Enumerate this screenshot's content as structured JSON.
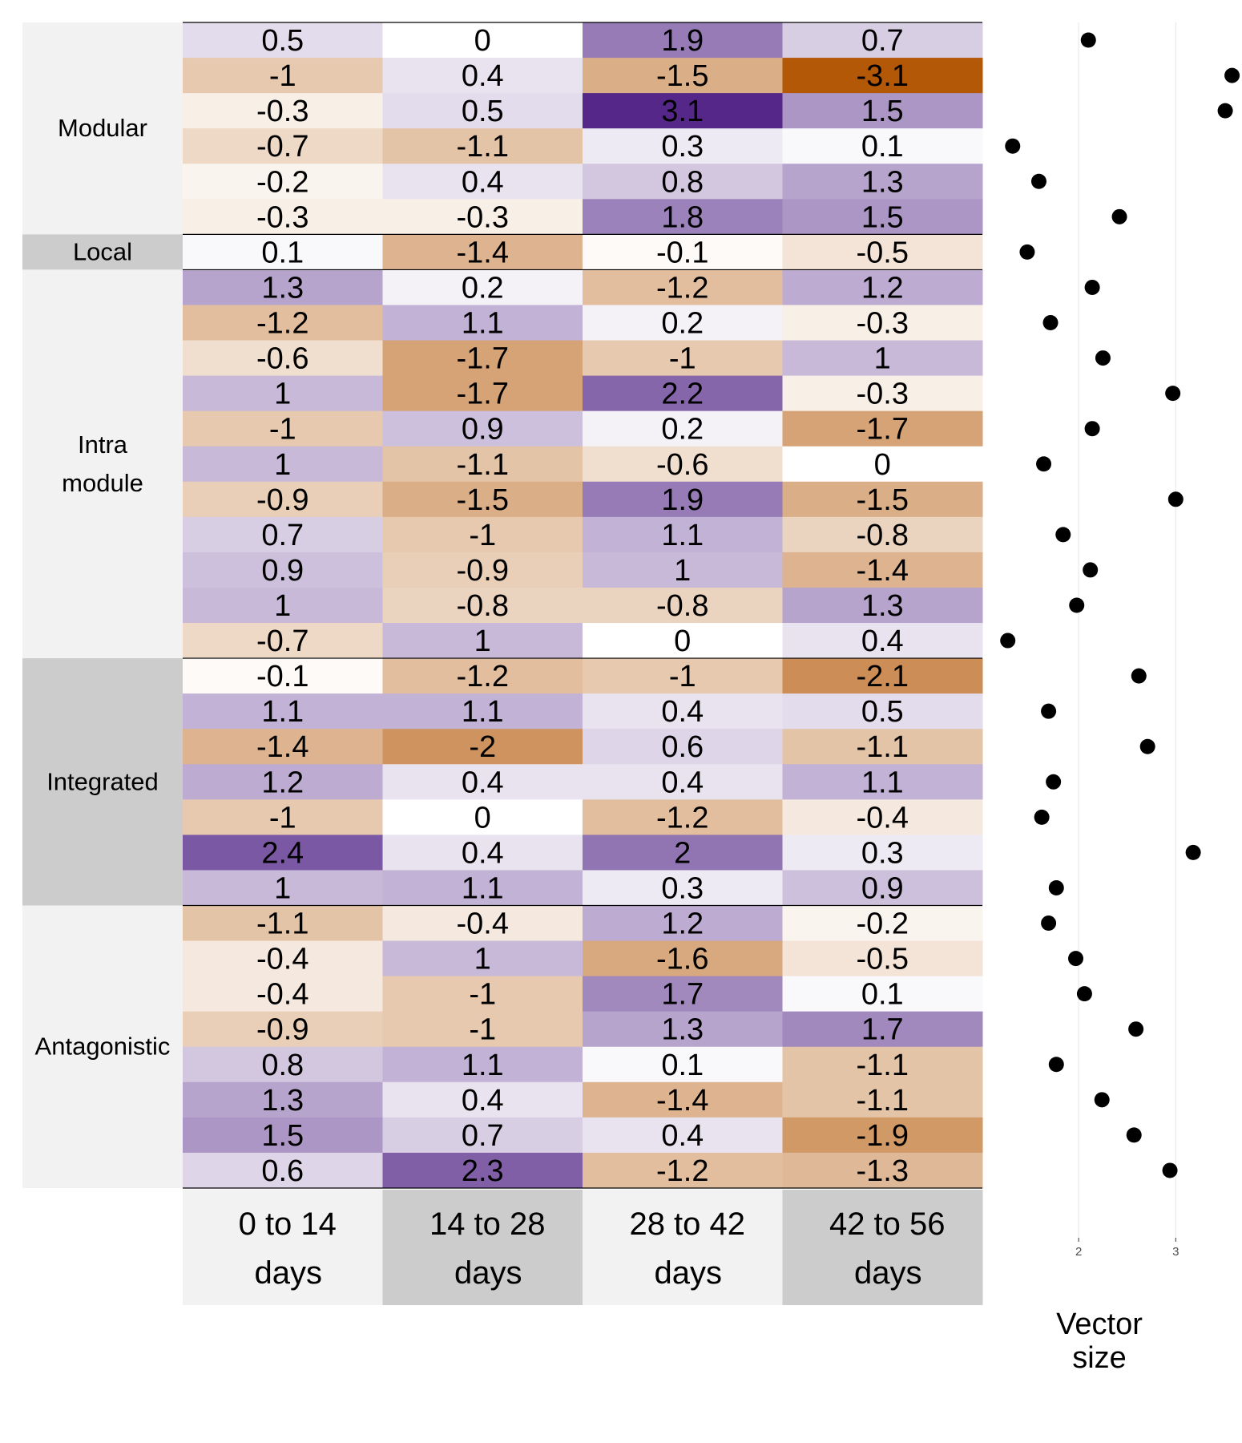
{
  "chart_data": [
    {
      "type": "heatmap",
      "columns": [
        [
          "0 to 14",
          "days"
        ],
        [
          "14 to 28",
          "days"
        ],
        [
          "28 to 42",
          "days"
        ],
        [
          "42 to 56",
          "days"
        ]
      ],
      "groups": [
        {
          "label": [
            "Modular"
          ],
          "rows": 6
        },
        {
          "label": [
            "Local"
          ],
          "rows": 1
        },
        {
          "label": [
            "Intra",
            "module"
          ],
          "rows": 11
        },
        {
          "label": [
            "Integrated"
          ],
          "rows": 7
        },
        {
          "label": [
            "Antagonistic"
          ],
          "rows": 8
        }
      ],
      "values": [
        [
          0.5,
          0,
          1.9,
          0.7
        ],
        [
          -1,
          0.4,
          -1.5,
          -3.1
        ],
        [
          -0.3,
          0.5,
          3.1,
          1.5
        ],
        [
          -0.7,
          -1.1,
          0.3,
          0.1
        ],
        [
          -0.2,
          0.4,
          0.8,
          1.3
        ],
        [
          -0.3,
          -0.3,
          1.8,
          1.5
        ],
        [
          0.1,
          -1.4,
          -0.1,
          -0.5
        ],
        [
          1.3,
          0.2,
          -1.2,
          1.2
        ],
        [
          -1.2,
          1.1,
          0.2,
          -0.3
        ],
        [
          -0.6,
          -1.7,
          -1,
          1
        ],
        [
          1,
          -1.7,
          2.2,
          -0.3
        ],
        [
          -1,
          0.9,
          0.2,
          -1.7
        ],
        [
          1,
          -1.1,
          -0.6,
          0
        ],
        [
          -0.9,
          -1.5,
          1.9,
          -1.5
        ],
        [
          0.7,
          -1,
          1.1,
          -0.8
        ],
        [
          0.9,
          -0.9,
          1,
          -1.4
        ],
        [
          1,
          -0.8,
          -0.8,
          1.3
        ],
        [
          -0.7,
          1,
          0,
          0.4
        ],
        [
          -0.1,
          -1.2,
          -1,
          -2.1
        ],
        [
          1.1,
          1.1,
          0.4,
          0.5
        ],
        [
          -1.4,
          -2,
          0.6,
          -1.1
        ],
        [
          1.2,
          0.4,
          0.4,
          1.1
        ],
        [
          -1,
          0,
          -1.2,
          -0.4
        ],
        [
          2.4,
          0.4,
          2,
          0.3
        ],
        [
          1,
          1.1,
          0.3,
          0.9
        ],
        [
          -1.1,
          -0.4,
          1.2,
          -0.2
        ],
        [
          -0.4,
          1,
          -1.6,
          -0.5
        ],
        [
          -0.4,
          -1,
          1.7,
          0.1
        ],
        [
          -0.9,
          -1,
          1.3,
          1.7
        ],
        [
          0.8,
          1.1,
          0.1,
          -1.1
        ],
        [
          1.3,
          0.4,
          -1.4,
          -1.1
        ],
        [
          1.5,
          0.7,
          0.4,
          -1.9
        ],
        [
          0.6,
          2.3,
          -1.2,
          -1.3
        ]
      ],
      "colors": {
        "positive": "#542788",
        "negative": "#b35806",
        "neutral": "#ffffff",
        "group_light": "#f2f2f2",
        "group_dark": "#cccccc"
      }
    },
    {
      "type": "scatter",
      "xlabel": [
        "Vector",
        "size"
      ],
      "x_ticks": [
        "2",
        "3"
      ],
      "xlim": [
        1.0,
        3.6
      ],
      "values": [
        2.1,
        3.58,
        3.51,
        1.32,
        1.59,
        2.42,
        1.47,
        2.14,
        1.71,
        2.25,
        2.97,
        2.14,
        1.64,
        3.0,
        1.84,
        2.12,
        1.98,
        1.27,
        2.62,
        1.69,
        2.71,
        1.74,
        1.62,
        3.18,
        1.77,
        1.69,
        1.97,
        2.06,
        2.59,
        1.77,
        2.24,
        2.57,
        2.94
      ],
      "marker_color": "#000000"
    }
  ]
}
